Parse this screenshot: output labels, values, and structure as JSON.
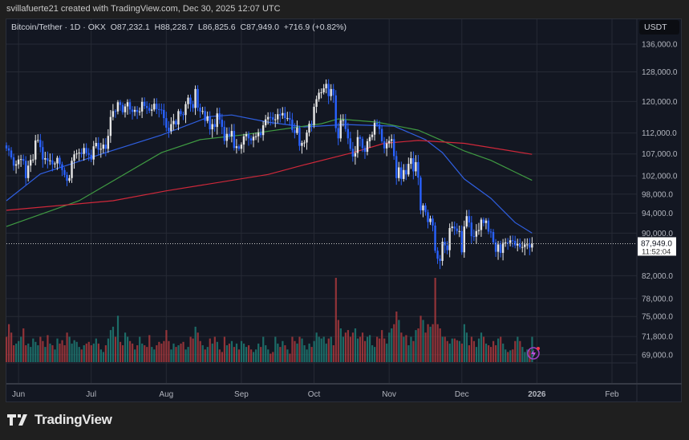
{
  "credit": "svillafuerte21 created with TradingView.com, Dec 30, 2025 12:07 UTC",
  "brand": "TradingView",
  "legend": {
    "symbol": "Bitcoin/Tether · 1D · OKX",
    "open": "O87,232.1",
    "high": "H88,228.7",
    "low": "L86,825.6",
    "close": "C87,949.0",
    "change": "+716.9 (+0.82%)"
  },
  "price_axis": {
    "currency": "USDT",
    "last_price": "87,949.0",
    "countdown": "11:52:04"
  },
  "colors": {
    "background": "#131722",
    "up_candle": "#e6e6e6",
    "down_candle": "#2962ff",
    "volume_up": "#1f7a73",
    "volume_down": "#a8383c",
    "ma_blue": "#2f5fe0",
    "ma_green": "#3f9a42",
    "ma_red": "#d0283a"
  },
  "chart_data": {
    "type": "candlestick",
    "scale": "log",
    "grid": true,
    "ylim": [
      67500,
      140000
    ],
    "start_date": "2025-05-27",
    "end_date": "2025-12-30",
    "y_ticks": [
      "136,000.0",
      "128,000.0",
      "120,000.0",
      "112,000.0",
      "107,000.0",
      "102,000.0",
      "98,000.0",
      "94,000.0",
      "90,000.0",
      "82,000.0",
      "78,000.0",
      "75,000.0",
      "71,800.0",
      "69,000.0"
    ],
    "y_tick_values": [
      136000,
      128000,
      120000,
      112000,
      107000,
      102000,
      98000,
      94000,
      90000,
      82000,
      78000,
      75000,
      71800,
      69000
    ],
    "x_ticks": [
      {
        "label": "Jun",
        "day": 5
      },
      {
        "label": "Jul",
        "day": 35
      },
      {
        "label": "Aug",
        "day": 66
      },
      {
        "label": "Sep",
        "day": 97
      },
      {
        "label": "Oct",
        "day": 127
      },
      {
        "label": "Nov",
        "day": 158
      },
      {
        "label": "Dec",
        "day": 188
      },
      {
        "label": "2026",
        "day": 219
      },
      {
        "label": "Feb",
        "day": 250
      }
    ],
    "first_open": 109000,
    "closes": [
      108300,
      107800,
      106200,
      104300,
      104600,
      105700,
      105800,
      105400,
      101500,
      104300,
      105600,
      105700,
      110200,
      110300,
      108600,
      105700,
      106000,
      105400,
      105500,
      104600,
      104800,
      106100,
      104600,
      103300,
      102200,
      100900,
      101500,
      105400,
      106900,
      107100,
      107300,
      107000,
      108400,
      107200,
      106800,
      105700,
      108800,
      109600,
      108000,
      108200,
      109200,
      108200,
      111300,
      116000,
      117500,
      117400,
      119800,
      119100,
      117200,
      118700,
      119800,
      117900,
      117300,
      117800,
      117300,
      117400,
      119900,
      118800,
      118300,
      117600,
      117900,
      119400,
      118000,
      117900,
      117800,
      115700,
      113300,
      112500,
      114200,
      115000,
      114100,
      117500,
      116700,
      116500,
      119300,
      121000,
      119300,
      118300,
      123300,
      118400,
      117400,
      117500,
      115000,
      116200,
      112900,
      114200,
      113500,
      116900,
      115300,
      113500,
      110100,
      111800,
      111200,
      112500,
      108400,
      108800,
      108200,
      109200,
      111200,
      111700,
      110700,
      110200,
      111100,
      111200,
      112100,
      111500,
      113900,
      115400,
      116000,
      115900,
      115300,
      115400,
      116700,
      116400,
      117000,
      115700,
      115700,
      115300,
      112700,
      112000,
      113300,
      108900,
      109600,
      109700,
      112100,
      114300,
      114000,
      118600,
      120600,
      122300,
      122400,
      123500,
      124700,
      121400,
      123300,
      121600,
      113200,
      110700,
      115200,
      115200,
      113000,
      110700,
      108200,
      106400,
      107200,
      111000,
      110600,
      108400,
      107500,
      110000,
      111000,
      111600,
      114500,
      114100,
      113000,
      110000,
      108300,
      109500,
      110100,
      110500,
      106500,
      101500,
      103900,
      101300,
      103300,
      102300,
      104700,
      106000,
      103000,
      105100,
      101600,
      94600,
      95600,
      94200,
      92200,
      92900,
      91500,
      86600,
      85100,
      84700,
      88300,
      87600,
      86700,
      91000,
      91300,
      90900,
      90400,
      90400,
      86300,
      91300,
      93400,
      92100,
      89400,
      89300,
      90400,
      90600,
      92700,
      92000,
      92500,
      90300,
      90200,
      88200,
      86400,
      87800,
      86200,
      88100,
      88200,
      88100,
      88600,
      88500,
      87600,
      87900,
      87300,
      87300,
      87800,
      87800,
      87200,
      87949
    ],
    "volumes_relative": [
      30,
      45,
      35,
      20,
      22,
      25,
      30,
      40,
      20,
      22,
      18,
      28,
      24,
      20,
      30,
      25,
      18,
      32,
      22,
      20,
      15,
      28,
      22,
      26,
      20,
      35,
      30,
      22,
      26,
      24,
      18,
      15,
      20,
      22,
      24,
      20,
      22,
      28,
      22,
      15,
      12,
      20,
      28,
      38,
      42,
      30,
      55,
      24,
      20,
      35,
      30,
      25,
      22,
      15,
      20,
      30,
      22,
      20,
      18,
      32,
      18,
      15,
      20,
      24,
      22,
      25,
      38,
      25,
      15,
      22,
      18,
      20,
      22,
      24,
      15,
      18,
      30,
      28,
      42,
      35,
      25,
      20,
      15,
      18,
      28,
      22,
      30,
      24,
      15,
      12,
      30,
      20,
      22,
      25,
      18,
      22,
      15,
      25,
      22,
      18,
      20,
      15,
      12,
      15,
      22,
      18,
      30,
      20,
      15,
      10,
      12,
      30,
      22,
      18,
      25,
      20,
      15,
      10,
      30,
      25,
      22,
      30,
      28,
      20,
      15,
      22,
      18,
      25,
      35,
      30,
      28,
      30,
      22,
      28,
      30,
      20,
      100,
      50,
      40,
      30,
      35,
      38,
      30,
      35,
      40,
      28,
      30,
      35,
      25,
      30,
      32,
      20,
      18,
      30,
      28,
      38,
      28,
      22,
      35,
      40,
      45,
      60,
      50,
      35,
      30,
      32,
      20,
      30,
      25,
      38,
      40,
      55,
      50,
      35,
      45,
      42,
      45,
      100,
      45,
      40,
      30,
      30,
      25,
      22,
      28,
      28,
      26,
      25,
      22,
      45,
      35,
      20,
      30,
      25,
      18,
      28,
      35,
      30,
      22,
      20,
      18,
      25,
      20,
      28,
      30,
      22,
      15,
      12,
      14,
      15,
      25,
      30,
      25,
      18,
      12,
      15,
      14,
      30
    ],
    "moving_averages": [
      {
        "color": "ma_blue",
        "points": [
          [
            0,
            96600
          ],
          [
            14,
            102400
          ],
          [
            41,
            107300
          ],
          [
            64,
            111500
          ],
          [
            84,
            116100
          ],
          [
            93,
            116500
          ],
          [
            108,
            114700
          ],
          [
            123,
            113500
          ],
          [
            140,
            114100
          ],
          [
            160,
            113700
          ],
          [
            173,
            110400
          ],
          [
            180,
            107300
          ],
          [
            189,
            101300
          ],
          [
            200,
            97100
          ],
          [
            210,
            92100
          ],
          [
            217,
            90000
          ]
        ]
      },
      {
        "color": "ma_green",
        "points": [
          [
            0,
            91300
          ],
          [
            30,
            96600
          ],
          [
            64,
            107300
          ],
          [
            80,
            110400
          ],
          [
            97,
            111500
          ],
          [
            130,
            114300
          ],
          [
            137,
            115500
          ],
          [
            153,
            114700
          ],
          [
            170,
            112700
          ],
          [
            179,
            110400
          ],
          [
            189,
            107700
          ],
          [
            200,
            105500
          ],
          [
            217,
            101000
          ]
        ]
      },
      {
        "color": "ma_red",
        "points": [
          [
            0,
            94600
          ],
          [
            44,
            96600
          ],
          [
            66,
            98700
          ],
          [
            108,
            102300
          ],
          [
            123,
            104500
          ],
          [
            143,
            107300
          ],
          [
            156,
            109500
          ],
          [
            170,
            110200
          ],
          [
            189,
            109500
          ],
          [
            217,
            106900
          ]
        ]
      }
    ]
  }
}
